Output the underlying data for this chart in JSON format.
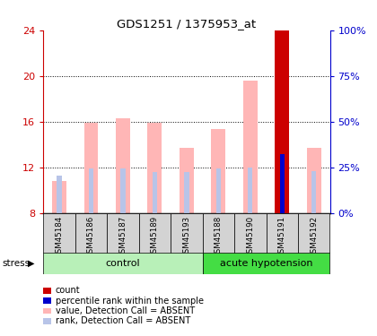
{
  "title": "GDS1251 / 1375953_at",
  "samples": [
    "GSM45184",
    "GSM45186",
    "GSM45187",
    "GSM45189",
    "GSM45193",
    "GSM45188",
    "GSM45190",
    "GSM45191",
    "GSM45192"
  ],
  "n_control": 5,
  "n_acute": 4,
  "value_absent": [
    10.8,
    15.9,
    16.3,
    15.9,
    13.7,
    15.4,
    19.6,
    24.0,
    13.7
  ],
  "rank_absent": [
    11.3,
    11.9,
    11.9,
    11.6,
    11.6,
    11.9,
    12.0,
    13.2,
    11.7
  ],
  "special_idx": 7,
  "count_value": 24.0,
  "percentile_value": 13.2,
  "ymin": 8,
  "ymax": 24,
  "yticks": [
    8,
    12,
    16,
    20,
    24
  ],
  "right_yticks": [
    0,
    25,
    50,
    75,
    100
  ],
  "right_ytick_labels": [
    "0%",
    "25%",
    "50%",
    "75%",
    "100%"
  ],
  "color_value_absent": "#ffb6b6",
  "color_rank_absent": "#b8c4e8",
  "color_count": "#cc0000",
  "color_percentile": "#0000cc",
  "color_left_axis": "#cc0000",
  "color_right_axis": "#0000cc",
  "group_control_color": "#b8f0b8",
  "group_acute_color": "#44dd44",
  "label_bg_color": "#d3d3d3",
  "control_label": "control",
  "acute_label": "acute hypotension",
  "stress_label": "stress",
  "legend_count": "count",
  "legend_percentile": "percentile rank within the sample",
  "legend_value_absent": "value, Detection Call = ABSENT",
  "legend_rank_absent": "rank, Detection Call = ABSENT"
}
